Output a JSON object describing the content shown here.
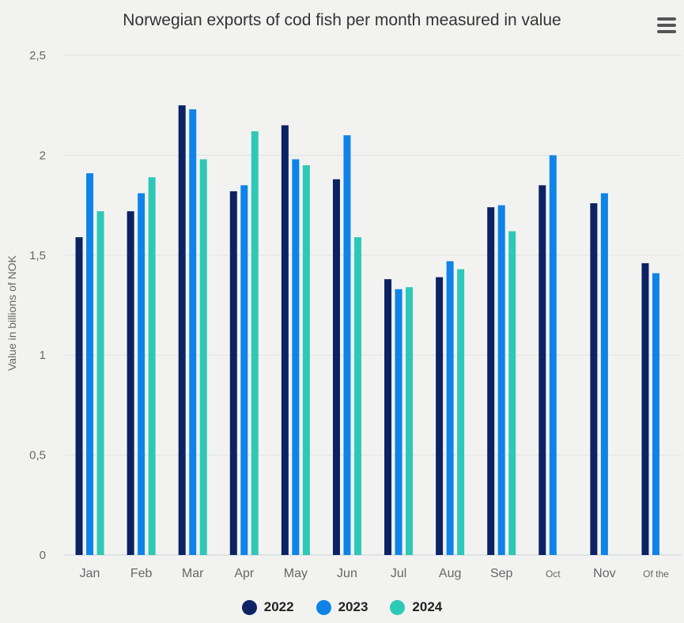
{
  "colors": {
    "2022": "#0d2263",
    "2023": "#0f83e8",
    "2024": "#2ec8b7",
    "background": "#f2f3f1",
    "grid": "#e0e3e0"
  },
  "menu": {
    "icon": "hamburger-menu-icon"
  },
  "chart_data": {
    "type": "bar",
    "title": "Norwegian exports of cod fish per month measured in value",
    "xlabel": "",
    "ylabel": "Value in billions of NOK",
    "ylim": [
      0,
      2.5
    ],
    "yticks": [
      "0",
      "0,5",
      "1",
      "1,5",
      "2",
      "2,5"
    ],
    "ytick_values": [
      0,
      0.5,
      1,
      1.5,
      2,
      2.5
    ],
    "grid": true,
    "legend": "bottom-center",
    "categories": [
      "Jan",
      "Feb",
      "Mar",
      "Apr",
      "May",
      "Jun",
      "Jul",
      "Aug",
      "Sep",
      "Oct",
      "Nov",
      "Of the"
    ],
    "series": [
      {
        "name": "2022",
        "values": [
          1.59,
          1.72,
          2.25,
          1.82,
          2.15,
          1.88,
          1.38,
          1.39,
          1.74,
          1.85,
          1.76,
          1.46
        ]
      },
      {
        "name": "2023",
        "values": [
          1.91,
          1.81,
          2.23,
          1.85,
          1.98,
          2.1,
          1.33,
          1.47,
          1.75,
          2.0,
          1.81,
          1.41
        ]
      },
      {
        "name": "2024",
        "values": [
          1.72,
          1.89,
          1.98,
          2.12,
          1.95,
          1.59,
          1.34,
          1.43,
          1.62,
          null,
          null,
          null
        ]
      }
    ]
  }
}
